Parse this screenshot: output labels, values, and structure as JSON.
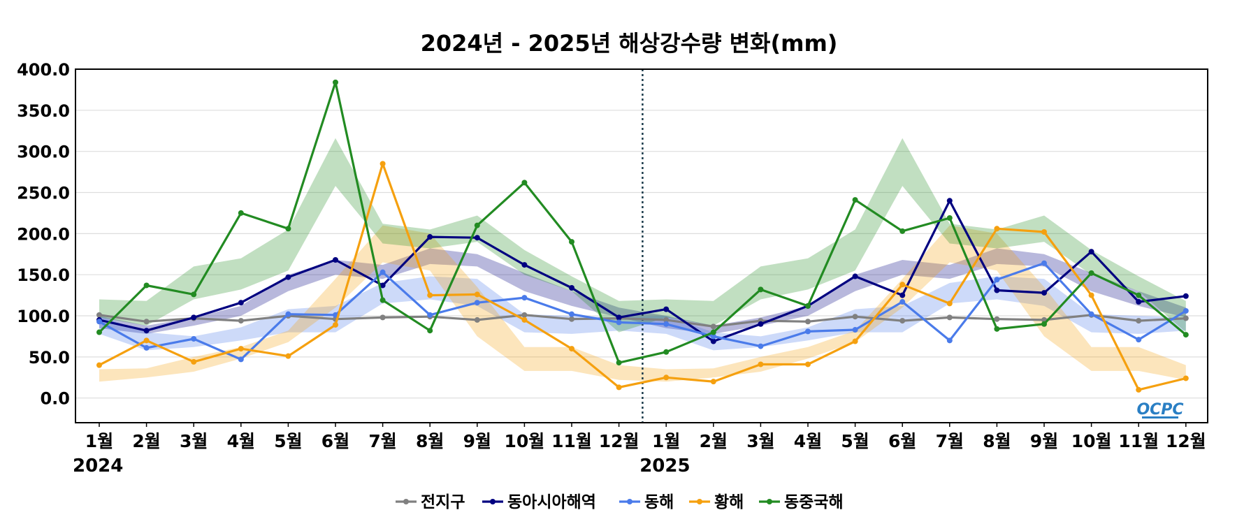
{
  "chart_data": {
    "type": "line",
    "title": "2024년 - 2025년 해상강수량 변화(mm)",
    "xlabel": "",
    "ylabel": "",
    "ylim": [
      -30,
      400
    ],
    "yticks": [
      "0.0",
      "50.0",
      "100.0",
      "150.0",
      "200.0",
      "250.0",
      "300.0",
      "350.0",
      "400.0"
    ],
    "grid": true,
    "legend_position": "bottom",
    "categories": [
      "1월",
      "2월",
      "3월",
      "4월",
      "5월",
      "6월",
      "7월",
      "8월",
      "9월",
      "10월",
      "11월",
      "12월",
      "1월",
      "2월",
      "3월",
      "4월",
      "5월",
      "6월",
      "7월",
      "8월",
      "9월",
      "10월",
      "11월",
      "12월"
    ],
    "year_labels": [
      {
        "index": 0,
        "label": "2024"
      },
      {
        "index": 12,
        "label": "2025"
      }
    ],
    "divider_after_index": 11,
    "series": [
      {
        "name": "전지구",
        "color": "#808080",
        "values": [
          101,
          93,
          97,
          94,
          100,
          96,
          98,
          99,
          95,
          101,
          96,
          97,
          95,
          87,
          94,
          93,
          99,
          94,
          98,
          96,
          95,
          101,
          94,
          97
        ]
      },
      {
        "name": "동아시아해역",
        "color": "#000080",
        "values": [
          95,
          82,
          98,
          116,
          147,
          168,
          137,
          196,
          195,
          162,
          134,
          98,
          108,
          69,
          90,
          112,
          148,
          125,
          240,
          131,
          128,
          178,
          117,
          124
        ]
      },
      {
        "name": "동해",
        "color": "#4a7bea",
        "values": [
          93,
          61,
          72,
          47,
          102,
          101,
          153,
          101,
          116,
          122,
          102,
          92,
          90,
          75,
          63,
          81,
          83,
          117,
          70,
          144,
          164,
          102,
          71,
          106
        ]
      },
      {
        "name": "황해",
        "color": "#f5a00f",
        "values": [
          40,
          70,
          44,
          60,
          51,
          89,
          285,
          125,
          126,
          95,
          60,
          13,
          25,
          20,
          41,
          41,
          69,
          138,
          115,
          206,
          202,
          125,
          10,
          24
        ]
      },
      {
        "name": "동중국해",
        "color": "#228b22",
        "values": [
          80,
          137,
          126,
          225,
          206,
          384,
          119,
          82,
          210,
          262,
          190,
          43,
          56,
          80,
          132,
          112,
          241,
          203,
          219,
          84,
          90,
          152,
          125,
          77
        ]
      }
    ],
    "bands": [
      {
        "series": "동아시아해역",
        "color": "#000080",
        "lower": [
          85,
          78,
          88,
          100,
          130,
          150,
          145,
          163,
          160,
          130,
          112,
          98,
          85,
          78,
          88,
          100,
          130,
          150,
          145,
          163,
          160,
          130,
          112,
          98
        ],
        "upper": [
          100,
          88,
          98,
          112,
          150,
          168,
          162,
          182,
          175,
          152,
          130,
          110,
          100,
          88,
          98,
          112,
          150,
          168,
          162,
          182,
          175,
          152,
          130,
          110
        ]
      },
      {
        "series": "동해",
        "color": "#4a7bea",
        "lower": [
          78,
          58,
          62,
          70,
          80,
          80,
          115,
          120,
          112,
          80,
          78,
          82,
          78,
          58,
          62,
          70,
          80,
          80,
          115,
          120,
          112,
          80,
          78,
          82
        ],
        "upper": [
          100,
          80,
          75,
          86,
          108,
          112,
          140,
          148,
          145,
          102,
          100,
          98,
          100,
          80,
          75,
          86,
          108,
          112,
          140,
          148,
          145,
          102,
          100,
          98
        ]
      },
      {
        "series": "황해",
        "color": "#f5a00f",
        "lower": [
          20,
          25,
          32,
          48,
          68,
          110,
          165,
          155,
          75,
          33,
          33,
          22,
          20,
          25,
          32,
          48,
          68,
          110,
          165,
          155,
          75,
          33,
          33,
          22
        ],
        "upper": [
          35,
          36,
          50,
          62,
          82,
          145,
          210,
          200,
          135,
          62,
          62,
          40,
          35,
          36,
          50,
          62,
          82,
          145,
          210,
          200,
          135,
          62,
          62,
          40
        ]
      },
      {
        "series": "동중국해",
        "color": "#228b22",
        "lower": [
          98,
          88,
          120,
          132,
          155,
          258,
          188,
          182,
          190,
          150,
          130,
          80,
          98,
          88,
          120,
          132,
          155,
          258,
          188,
          182,
          190,
          150,
          130,
          80
        ],
        "upper": [
          120,
          118,
          160,
          170,
          205,
          316,
          212,
          205,
          222,
          180,
          148,
          118,
          120,
          118,
          160,
          170,
          205,
          316,
          212,
          205,
          222,
          180,
          148,
          118
        ]
      }
    ]
  },
  "logo": {
    "text": "OCPC"
  }
}
